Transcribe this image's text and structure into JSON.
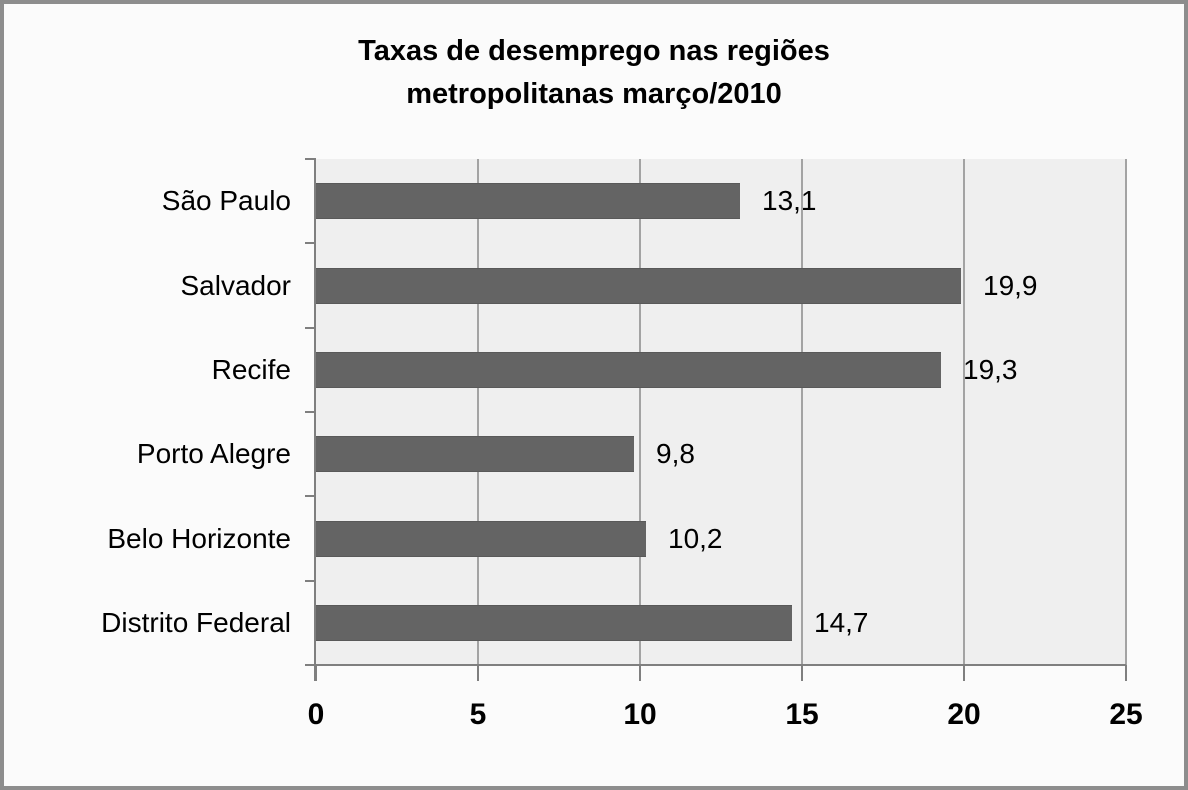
{
  "chart_data": {
    "type": "bar",
    "orientation": "horizontal",
    "title_line1": "Taxas de desemprego nas regiões",
    "title_line2": "metropolitanas março/2010",
    "categories": [
      "São Paulo",
      "Salvador",
      "Recife",
      "Porto Alegre",
      "Belo Horizonte",
      "Distrito Federal"
    ],
    "values": [
      13.1,
      19.9,
      19.3,
      9.8,
      10.2,
      14.7
    ],
    "value_labels": [
      "13,1",
      "19,9",
      "19,3",
      "9,8",
      "10,2",
      "14,7"
    ],
    "x_ticks": [
      0,
      5,
      10,
      15,
      20,
      25
    ],
    "xlim": [
      0,
      25
    ],
    "grid": true,
    "legend": "none",
    "colors": {
      "bar": "#646464",
      "plot_background": "#efefef",
      "gridline": "#a3a3a3",
      "axis": "#7f7f7f",
      "page_background": "#fbfbfb",
      "frame_border": "#8d8d8d",
      "text": "#000000"
    }
  }
}
